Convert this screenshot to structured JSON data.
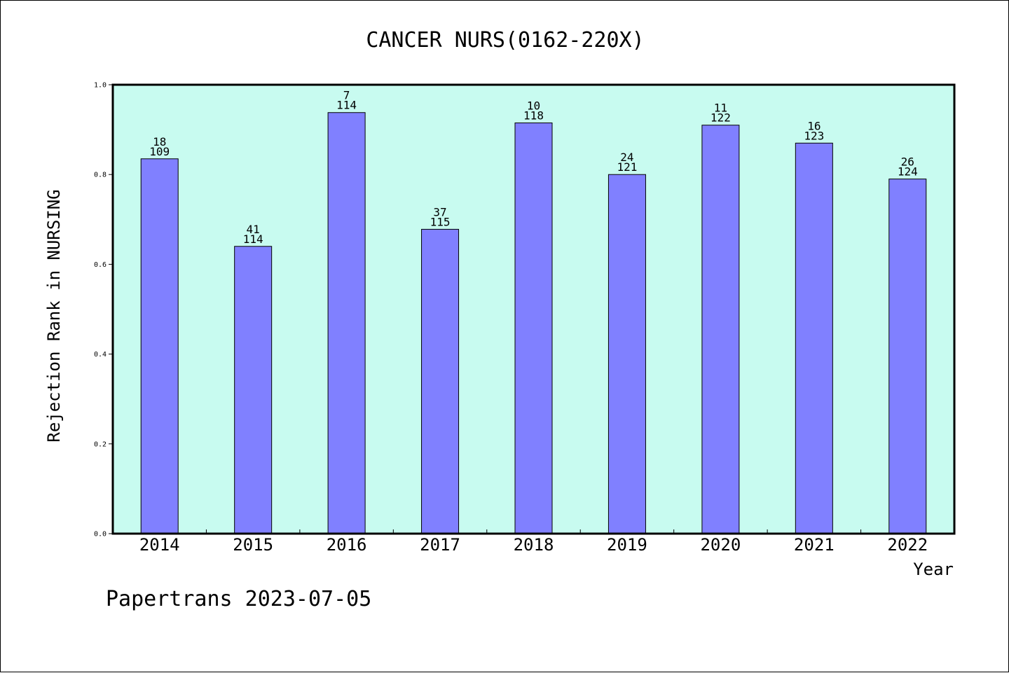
{
  "chart_data": {
    "type": "bar",
    "title": "CANCER NURS(0162-220X)",
    "xlabel": "Year",
    "ylabel": "Rejection Rank in NURSING",
    "ylim": [
      0,
      1.0
    ],
    "yticks": [
      "0.0",
      "0.2",
      "0.4",
      "0.6",
      "0.8",
      "1.0"
    ],
    "categories": [
      "2014",
      "2015",
      "2016",
      "2017",
      "2018",
      "2019",
      "2020",
      "2021",
      "2022"
    ],
    "values": [
      0.835,
      0.64,
      0.938,
      0.678,
      0.915,
      0.8,
      0.91,
      0.87,
      0.79
    ],
    "rank_labels": [
      "18",
      "41",
      "7",
      "37",
      "10",
      "24",
      "11",
      "16",
      "26"
    ],
    "total_labels": [
      "109",
      "114",
      "114",
      "115",
      "118",
      "121",
      "122",
      "123",
      "124"
    ],
    "colors": {
      "plot_background": "#c8fbf0",
      "bar_fill": "#8080ff",
      "bar_stroke": "#000000"
    },
    "grid": false,
    "legend": "none"
  },
  "footer": {
    "text": "Papertrans 2023-07-05"
  }
}
